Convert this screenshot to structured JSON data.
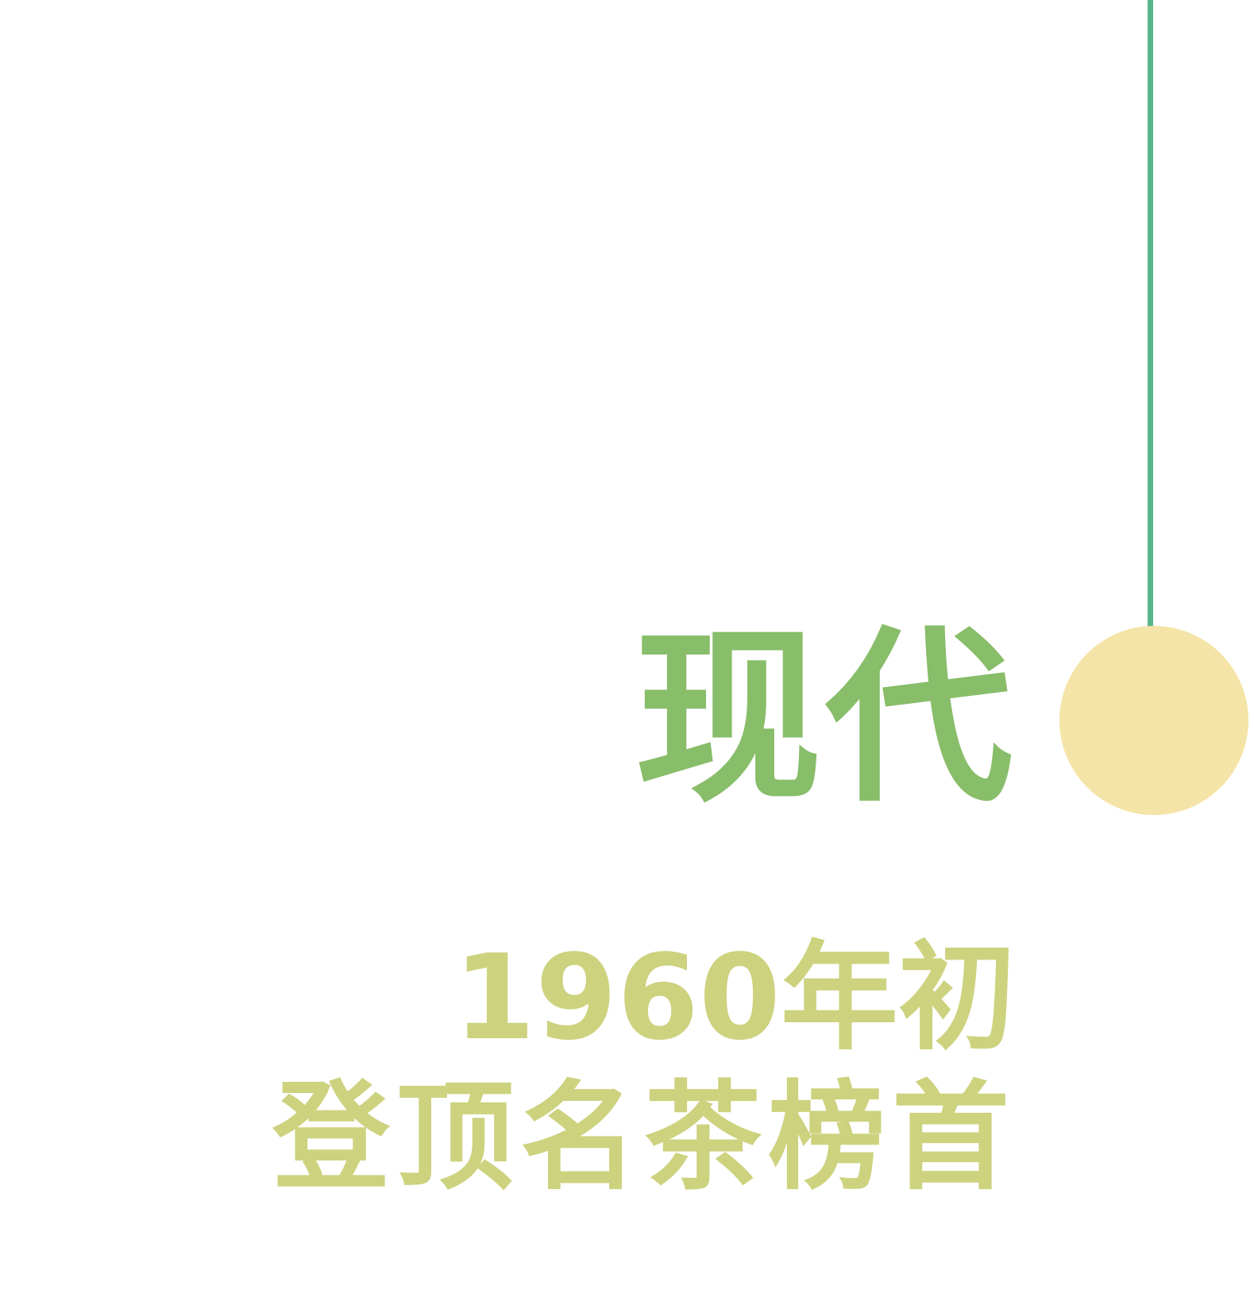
{
  "colors": {
    "line": "#58b58a",
    "dot": "#f4e4a7",
    "title": "#88bd6a",
    "subtitle": "#cdd27e"
  },
  "era": {
    "title": "现代"
  },
  "event": {
    "year_line": "1960年初",
    "desc_line": "登顶名茶榜首"
  }
}
